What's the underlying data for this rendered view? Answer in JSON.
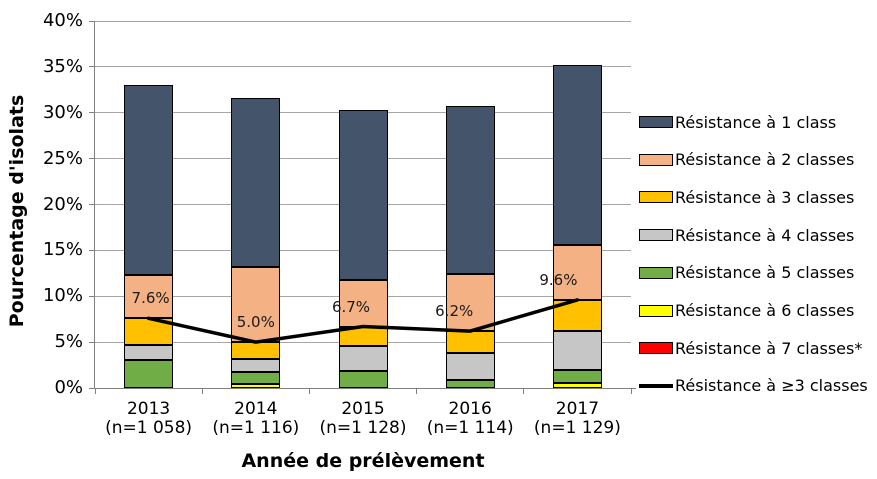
{
  "chart_data": {
    "type": "bar",
    "stacked": true,
    "title": "",
    "xlabel": "Année de prélèvement",
    "ylabel": "Pourcentage d'isolats",
    "ylim": [
      0,
      40
    ],
    "ytick_step": 5,
    "ytick_labels": [
      "0%",
      "5%",
      "10%",
      "15%",
      "20%",
      "25%",
      "30%",
      "35%",
      "40%"
    ],
    "grid": true,
    "legend_position": "right",
    "categories": [
      "2013",
      "2014",
      "2015",
      "2016",
      "2017"
    ],
    "category_sublabels": [
      "(n=1 058)",
      "(n=1 116)",
      "(n=1 128)",
      "(n=1 114)",
      "(n=1 129)"
    ],
    "series": [
      {
        "name": "Résistance à 7 classes*",
        "color": "#FF0000",
        "values": [
          0,
          0,
          0,
          0,
          0
        ]
      },
      {
        "name": "Résistance à 6 classes",
        "color": "#FFFF00",
        "values": [
          0,
          0.4,
          0,
          0,
          0.5
        ]
      },
      {
        "name": "Résistance à 5 classes",
        "color": "#70AD47",
        "values": [
          3.1,
          1.3,
          1.9,
          0.9,
          1.5
        ]
      },
      {
        "name": "Résistance à 4 classes",
        "color": "#C6C6C6",
        "values": [
          1.6,
          1.5,
          2.7,
          2.9,
          4.2
        ]
      },
      {
        "name": "Résistance à 3 classes",
        "color": "#FFC000",
        "values": [
          2.9,
          1.8,
          2.1,
          2.4,
          3.4
        ]
      },
      {
        "name": "Résistance à 2 classes",
        "color": "#F4B183",
        "values": [
          4.7,
          8.2,
          5.1,
          6.2,
          6.0
        ]
      },
      {
        "name": "Résistance à 1 class",
        "color": "#44546A",
        "values": [
          20.7,
          18.4,
          18.5,
          18.3,
          19.6
        ]
      }
    ],
    "bar_totals": [
      33.0,
      31.6,
      30.3,
      30.7,
      35.2
    ],
    "line_series": {
      "name": "Résistance à ≥3 classes",
      "color": "#000000",
      "values": [
        7.6,
        5.0,
        6.7,
        6.2,
        9.6
      ],
      "labels": [
        "7.6%",
        "5.0%",
        "6.7%",
        "6.2%",
        "9.6%"
      ]
    }
  },
  "legend": {
    "items": [
      {
        "label": "Résistance à 1 class",
        "color": "#44546A",
        "type": "box"
      },
      {
        "label": "Résistance à 2 classes",
        "color": "#F4B183",
        "type": "box"
      },
      {
        "label": "Résistance à 3 classes",
        "color": "#FFC000",
        "type": "box"
      },
      {
        "label": "Résistance à 4 classes",
        "color": "#C6C6C6",
        "type": "box"
      },
      {
        "label": "Résistance à 5 classes",
        "color": "#70AD47",
        "type": "box"
      },
      {
        "label": "Résistance à 6 classes",
        "color": "#FFFF00",
        "type": "box"
      },
      {
        "label": "Résistance à 7 classes*",
        "color": "#FF0000",
        "type": "box"
      },
      {
        "label": "Résistance à ≥3 classes",
        "color": "#000000",
        "type": "line"
      }
    ]
  }
}
